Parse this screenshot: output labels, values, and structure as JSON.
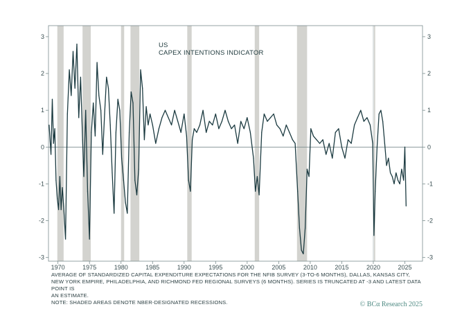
{
  "chart_data": {
    "type": "line",
    "title": "US",
    "subtitle": "CAPEX INTENTIONS INDICATOR",
    "xlabel": "",
    "ylabel": "",
    "xlim": [
      1968.5,
      2027.8
    ],
    "ylim": [
      -3.1,
      3.3
    ],
    "x_ticks": [
      1970,
      1975,
      1980,
      1985,
      1990,
      1995,
      2000,
      2005,
      2010,
      2015,
      2020,
      2025
    ],
    "x_tick_labels": [
      "1970",
      "1975",
      "1980",
      "1985",
      "1990",
      "1995",
      "2000",
      "2005",
      "2010",
      "2015",
      "2020",
      "2025"
    ],
    "y_ticks": [
      -3,
      -2,
      -1,
      0,
      1,
      2,
      3
    ],
    "y_tick_labels": [
      "-3",
      "-2",
      "-1",
      "0",
      "1",
      "2",
      "3"
    ],
    "reference_lines": {
      "y": 0,
      "x": 2020.0
    },
    "recessions": [
      [
        1969.9,
        1970.9
      ],
      [
        1973.9,
        1975.2
      ],
      [
        1980.0,
        1980.5
      ],
      [
        1981.5,
        1982.9
      ],
      [
        1990.5,
        1991.2
      ],
      [
        2001.2,
        2001.9
      ],
      [
        2007.9,
        2009.5
      ],
      [
        2020.1,
        2020.3
      ]
    ],
    "series": [
      {
        "name": "Capex intentions indicator",
        "color": "#1b3a40",
        "x": [
          1968.6,
          1968.9,
          1969.1,
          1969.3,
          1969.5,
          1969.7,
          1969.9,
          1970.1,
          1970.3,
          1970.5,
          1970.7,
          1970.9,
          1971.2,
          1971.5,
          1971.8,
          1972.1,
          1972.4,
          1972.7,
          1973.0,
          1973.3,
          1973.6,
          1973.9,
          1974.1,
          1974.4,
          1974.7,
          1975.0,
          1975.3,
          1975.6,
          1975.9,
          1976.2,
          1976.5,
          1976.8,
          1977.1,
          1977.4,
          1977.7,
          1978.0,
          1978.3,
          1978.6,
          1978.9,
          1979.2,
          1979.5,
          1979.8,
          1980.1,
          1980.4,
          1980.7,
          1981.0,
          1981.3,
          1981.6,
          1981.9,
          1982.2,
          1982.5,
          1982.8,
          1983.1,
          1983.4,
          1983.7,
          1984.0,
          1984.3,
          1984.6,
          1985.0,
          1985.5,
          1986.0,
          1986.5,
          1987.0,
          1987.5,
          1988.0,
          1988.5,
          1989.0,
          1989.5,
          1990.0,
          1990.4,
          1990.7,
          1991.0,
          1991.3,
          1991.6,
          1992.0,
          1992.5,
          1993.0,
          1993.5,
          1994.0,
          1994.5,
          1995.0,
          1995.5,
          1996.0,
          1996.5,
          1997.0,
          1997.5,
          1998.0,
          1998.5,
          1999.0,
          1999.5,
          2000.0,
          2000.5,
          2001.0,
          2001.3,
          2001.6,
          2001.9,
          2002.3,
          2002.7,
          2003.2,
          2003.7,
          2004.2,
          2004.7,
          2005.2,
          2005.7,
          2006.2,
          2006.7,
          2007.2,
          2007.6,
          2008.0,
          2008.3,
          2008.6,
          2008.9,
          2009.2,
          2009.5,
          2009.8,
          2010.1,
          2010.5,
          2011.0,
          2011.5,
          2012.0,
          2012.5,
          2013.0,
          2013.5,
          2014.0,
          2014.5,
          2015.0,
          2015.5,
          2016.0,
          2016.5,
          2017.0,
          2017.5,
          2018.0,
          2018.5,
          2019.0,
          2019.5,
          2019.9,
          2020.1,
          2020.3,
          2020.6,
          2020.9,
          2021.2,
          2021.5,
          2021.8,
          2022.1,
          2022.4,
          2022.7,
          2023.0,
          2023.3,
          2023.6,
          2023.9,
          2024.2,
          2024.5,
          2024.8,
          2025.0,
          2025.2
        ],
        "values": [
          0.6,
          -0.2,
          1.3,
          0.1,
          0.5,
          -0.9,
          -1.4,
          -1.7,
          -0.8,
          -1.7,
          -1.1,
          -1.6,
          -2.5,
          0.9,
          2.1,
          1.4,
          2.6,
          1.6,
          2.8,
          0.8,
          1.9,
          0.2,
          -0.8,
          1.0,
          -1.2,
          -2.5,
          0.4,
          1.2,
          0.3,
          2.3,
          1.4,
          1.0,
          -0.2,
          0.9,
          1.9,
          1.6,
          0.6,
          -0.7,
          -1.8,
          0.4,
          1.3,
          1.0,
          -0.3,
          -0.9,
          -1.5,
          -1.8,
          0.4,
          1.5,
          1.2,
          -0.9,
          -1.3,
          -0.6,
          2.1,
          1.6,
          0.2,
          1.1,
          0.6,
          0.9,
          0.6,
          0.1,
          0.5,
          0.8,
          1.0,
          0.8,
          0.6,
          1.0,
          0.7,
          0.4,
          0.9,
          0.3,
          -0.9,
          -1.2,
          0.2,
          0.5,
          0.4,
          0.6,
          1.0,
          0.4,
          0.7,
          0.6,
          0.9,
          0.5,
          0.7,
          1.0,
          0.7,
          0.5,
          0.6,
          0.1,
          0.7,
          0.5,
          0.8,
          0.4,
          -0.3,
          -1.2,
          -0.8,
          -1.3,
          0.4,
          0.9,
          0.7,
          0.8,
          0.9,
          0.6,
          0.5,
          0.3,
          0.6,
          0.4,
          0.2,
          0.1,
          -1.2,
          -2.2,
          -2.8,
          -2.9,
          -2.2,
          -0.6,
          -0.8,
          0.5,
          0.3,
          0.2,
          0.1,
          0.2,
          -0.2,
          0.1,
          -0.3,
          0.4,
          0.5,
          0.0,
          -0.3,
          0.2,
          0.1,
          0.6,
          0.8,
          1.0,
          0.7,
          0.8,
          0.6,
          0.1,
          -2.4,
          -1.2,
          0.0,
          0.9,
          1.0,
          0.7,
          0.1,
          -0.5,
          -0.3,
          -0.7,
          -0.8,
          -1.0,
          -0.7,
          -0.9,
          -1.0,
          -0.6,
          -0.9,
          0.0,
          -1.6
        ]
      }
    ]
  },
  "footnote_lines": [
    "AVERAGE OF STANDARDIZED CAPITAL EXPENDITURE EXPECTATIONS FOR THE NFIB SURVEY (3-TO-6 MONTHS), DALLAS, KANSAS CITY,",
    "NEW YORK EMPIRE, PHILADELPHIA, AND RICHMOND FED REGIONAL SURVEYS (6 MONTHS). SERIES IS TRUNCATED AT -3 AND LATEST DATA POINT IS",
    "AN ESTIMATE.",
    "NOTE: SHADED AREAS DENOTE NBER-DESIGNATED RECESSIONS."
  ],
  "credit": "© BCα Research 2025",
  "colors": {
    "line": "#1b3a40",
    "recession_band": "#d3d3cf",
    "frame": "#7a8c8e",
    "credit": "#4f8a83"
  }
}
